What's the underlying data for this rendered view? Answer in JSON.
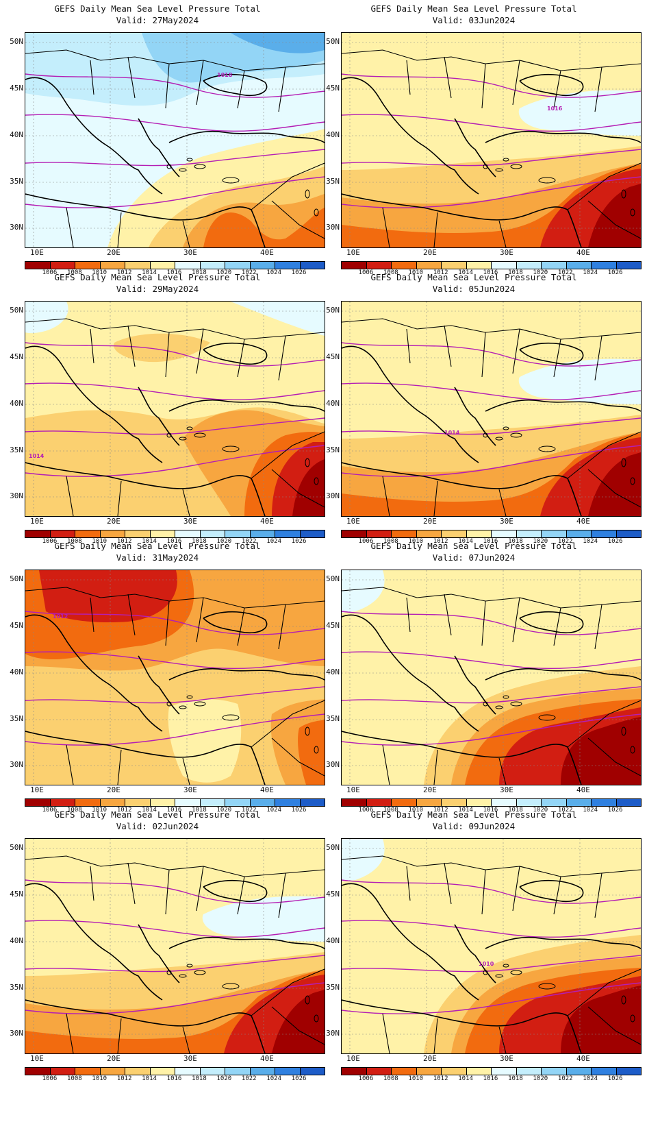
{
  "panels": [
    {
      "title": "GEFS Daily Mean Sea Level Pressure Total",
      "valid": "Valid: 27May2024",
      "contour_label": "1018",
      "regime": "high_north"
    },
    {
      "title": "GEFS Daily Mean Sea Level Pressure Total",
      "valid": "Valid: 03Jun2024",
      "contour_label": "1016",
      "regime": "mid"
    },
    {
      "title": "GEFS Daily Mean Sea Level Pressure Total",
      "valid": "Valid: 29May2024",
      "contour_label": "1014",
      "regime": "mid_low"
    },
    {
      "title": "GEFS Daily Mean Sea Level Pressure Total",
      "valid": "Valid: 05Jun2024",
      "contour_label": "1014",
      "regime": "mid"
    },
    {
      "title": "GEFS Daily Mean Sea Level Pressure Total",
      "valid": "Valid: 31May2024",
      "contour_label": "1012",
      "regime": "low_north"
    },
    {
      "title": "GEFS Daily Mean Sea Level Pressure Total",
      "valid": "Valid: 07Jun2024",
      "contour_label": "",
      "regime": "low_east"
    },
    {
      "title": "GEFS Daily Mean Sea Level Pressure Total",
      "valid": "Valid: 02Jun2024",
      "contour_label": "",
      "regime": "mid"
    },
    {
      "title": "GEFS Daily Mean Sea Level Pressure Total",
      "valid": "Valid: 09Jun2024",
      "contour_label": "1010",
      "regime": "low_east"
    }
  ],
  "lat_labels": [
    "50N",
    "45N",
    "40N",
    "35N",
    "30N"
  ],
  "lon_labels": [
    "10E",
    "20E",
    "30E",
    "40E"
  ],
  "colorbar": {
    "labels": [
      "1006",
      "1008",
      "1010",
      "1012",
      "1014",
      "1016",
      "1018",
      "1020",
      "1022",
      "1024",
      "1026"
    ],
    "colors": [
      "#a00000",
      "#d21e12",
      "#f26b0f",
      "#f7a640",
      "#fbd070",
      "#fff2a8",
      "#e6fbff",
      "#c4eefc",
      "#93d5f6",
      "#5aaeea",
      "#2f80e0",
      "#1d5cc8"
    ]
  },
  "contour_color": "#b41eb4"
}
